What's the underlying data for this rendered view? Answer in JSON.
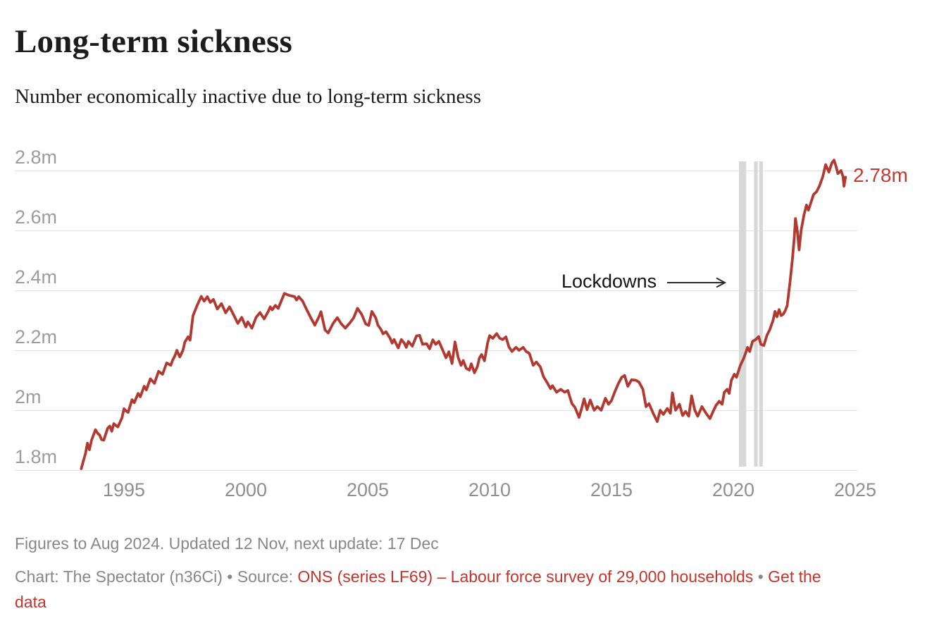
{
  "header": {
    "title": "Long-term sickness",
    "subtitle": "Number economically inactive due to long-term sickness"
  },
  "annotations": {
    "lockdowns_label": "Lockdowns",
    "end_value_label": "2.78m"
  },
  "footer": {
    "notes": "Figures to Aug 2024. Updated 12 Nov, next update: 17 Dec",
    "attribution": {
      "prefix": "Chart: The Spectator (n36Ci)",
      "separator1": " • ",
      "source_label": "Source: ",
      "source_link": "ONS (series LF69) – Labour force survey of 29,000 households",
      "separator2": " • ",
      "get_data_link": "Get the data"
    }
  },
  "colors": {
    "line_red": "#b13930",
    "label_red": "#c23a30",
    "link_red": "#c3342b",
    "grid_gray": "#e2e2e2",
    "band_gray": "#d8d8d8",
    "y_tick_gray": "#9c9c9c",
    "x_tick_gray": "#8f8f8f",
    "annotation_black": "#2b2b2b"
  },
  "chart_data": {
    "type": "line",
    "title": "Long-term sickness",
    "subtitle": "Number economically inactive due to long-term sickness",
    "unit": "millions of people",
    "grid": "horizontal",
    "legend": "none",
    "x_ticks": [
      1995,
      2000,
      2005,
      2010,
      2015,
      2020,
      2025
    ],
    "x_tick_labels": [
      "1995",
      "2000",
      "2005",
      "2010",
      "2015",
      "2020",
      "2025"
    ],
    "y_ticks": [
      1.8,
      2.0,
      2.2,
      2.4,
      2.6,
      2.8
    ],
    "y_tick_labels": [
      "1.8m",
      "2m",
      "2.2m",
      "2.4m",
      "2.6m",
      "2.8m"
    ],
    "x_range": [
      1990.5,
      2025.1
    ],
    "y_range": [
      1.8,
      2.85
    ],
    "lockdown_bands_years": [
      [
        2020.23,
        2020.53
      ],
      [
        2020.85,
        2021.0
      ],
      [
        2021.06,
        2021.21
      ]
    ],
    "lockdowns_annotation": {
      "text": "Lockdowns",
      "arrow_from_year": 2017.3,
      "arrow_to_year": 2019.7,
      "at_value": 2.425
    },
    "end_label": {
      "text": "2.78m",
      "year": 2024.6,
      "value": 2.78
    },
    "series": [
      {
        "name": "Economically inactive due to long-term sickness",
        "color": "#b13930",
        "points": [
          [
            1993.25,
            1.805
          ],
          [
            1993.33,
            1.83
          ],
          [
            1993.42,
            1.855
          ],
          [
            1993.5,
            1.89
          ],
          [
            1993.58,
            1.868
          ],
          [
            1993.67,
            1.9
          ],
          [
            1993.83,
            1.935
          ],
          [
            1993.92,
            1.923
          ],
          [
            1994.0,
            1.917
          ],
          [
            1994.08,
            1.902
          ],
          [
            1994.17,
            1.9
          ],
          [
            1994.33,
            1.94
          ],
          [
            1994.42,
            1.947
          ],
          [
            1994.5,
            1.93
          ],
          [
            1994.58,
            1.955
          ],
          [
            1994.75,
            1.944
          ],
          [
            1994.92,
            1.975
          ],
          [
            1995.0,
            2.005
          ],
          [
            1995.08,
            1.998
          ],
          [
            1995.17,
            1.993
          ],
          [
            1995.33,
            2.035
          ],
          [
            1995.42,
            2.025
          ],
          [
            1995.58,
            2.056
          ],
          [
            1995.67,
            2.045
          ],
          [
            1995.83,
            2.08
          ],
          [
            1995.92,
            2.068
          ],
          [
            1996.08,
            2.105
          ],
          [
            1996.25,
            2.09
          ],
          [
            1996.42,
            2.13
          ],
          [
            1996.58,
            2.12
          ],
          [
            1996.75,
            2.158
          ],
          [
            1996.92,
            2.15
          ],
          [
            1997.0,
            2.168
          ],
          [
            1997.08,
            2.18
          ],
          [
            1997.17,
            2.2
          ],
          [
            1997.29,
            2.178
          ],
          [
            1997.42,
            2.2
          ],
          [
            1997.5,
            2.228
          ],
          [
            1997.63,
            2.245
          ],
          [
            1997.71,
            2.234
          ],
          [
            1997.83,
            2.315
          ],
          [
            1998.0,
            2.35
          ],
          [
            1998.17,
            2.38
          ],
          [
            1998.29,
            2.364
          ],
          [
            1998.42,
            2.379
          ],
          [
            1998.54,
            2.36
          ],
          [
            1998.67,
            2.37
          ],
          [
            1998.83,
            2.338
          ],
          [
            1999.0,
            2.356
          ],
          [
            1999.17,
            2.325
          ],
          [
            1999.33,
            2.345
          ],
          [
            1999.5,
            2.318
          ],
          [
            1999.67,
            2.29
          ],
          [
            1999.83,
            2.31
          ],
          [
            2000.0,
            2.278
          ],
          [
            2000.08,
            2.295
          ],
          [
            2000.25,
            2.274
          ],
          [
            2000.42,
            2.31
          ],
          [
            2000.58,
            2.326
          ],
          [
            2000.75,
            2.305
          ],
          [
            2000.92,
            2.33
          ],
          [
            2001.0,
            2.345
          ],
          [
            2001.08,
            2.335
          ],
          [
            2001.21,
            2.35
          ],
          [
            2001.33,
            2.34
          ],
          [
            2001.5,
            2.374
          ],
          [
            2001.58,
            2.39
          ],
          [
            2001.75,
            2.384
          ],
          [
            2002.0,
            2.379
          ],
          [
            2002.08,
            2.368
          ],
          [
            2002.17,
            2.379
          ],
          [
            2002.33,
            2.364
          ],
          [
            2002.5,
            2.335
          ],
          [
            2002.67,
            2.308
          ],
          [
            2002.83,
            2.284
          ],
          [
            2003.0,
            2.312
          ],
          [
            2003.08,
            2.329
          ],
          [
            2003.25,
            2.268
          ],
          [
            2003.38,
            2.258
          ],
          [
            2003.58,
            2.29
          ],
          [
            2003.75,
            2.309
          ],
          [
            2003.92,
            2.288
          ],
          [
            2004.08,
            2.274
          ],
          [
            2004.25,
            2.29
          ],
          [
            2004.42,
            2.308
          ],
          [
            2004.58,
            2.34
          ],
          [
            2004.75,
            2.32
          ],
          [
            2004.92,
            2.288
          ],
          [
            2005.04,
            2.283
          ],
          [
            2005.17,
            2.33
          ],
          [
            2005.33,
            2.308
          ],
          [
            2005.42,
            2.284
          ],
          [
            2005.54,
            2.27
          ],
          [
            2005.63,
            2.255
          ],
          [
            2005.75,
            2.262
          ],
          [
            2005.92,
            2.24
          ],
          [
            2006.0,
            2.224
          ],
          [
            2006.08,
            2.236
          ],
          [
            2006.25,
            2.208
          ],
          [
            2006.38,
            2.236
          ],
          [
            2006.5,
            2.224
          ],
          [
            2006.58,
            2.21
          ],
          [
            2006.67,
            2.23
          ],
          [
            2006.83,
            2.214
          ],
          [
            2007.0,
            2.248
          ],
          [
            2007.13,
            2.25
          ],
          [
            2007.25,
            2.22
          ],
          [
            2007.42,
            2.222
          ],
          [
            2007.54,
            2.205
          ],
          [
            2007.67,
            2.235
          ],
          [
            2007.79,
            2.22
          ],
          [
            2007.92,
            2.23
          ],
          [
            2008.08,
            2.2
          ],
          [
            2008.21,
            2.175
          ],
          [
            2008.33,
            2.195
          ],
          [
            2008.46,
            2.156
          ],
          [
            2008.58,
            2.228
          ],
          [
            2008.71,
            2.176
          ],
          [
            2008.83,
            2.15
          ],
          [
            2008.92,
            2.166
          ],
          [
            2009.04,
            2.14
          ],
          [
            2009.17,
            2.134
          ],
          [
            2009.25,
            2.155
          ],
          [
            2009.38,
            2.125
          ],
          [
            2009.5,
            2.146
          ],
          [
            2009.58,
            2.174
          ],
          [
            2009.67,
            2.186
          ],
          [
            2009.79,
            2.165
          ],
          [
            2009.92,
            2.225
          ],
          [
            2010.0,
            2.249
          ],
          [
            2010.13,
            2.24
          ],
          [
            2010.29,
            2.256
          ],
          [
            2010.42,
            2.24
          ],
          [
            2010.54,
            2.236
          ],
          [
            2010.67,
            2.245
          ],
          [
            2010.79,
            2.212
          ],
          [
            2010.92,
            2.196
          ],
          [
            2011.08,
            2.21
          ],
          [
            2011.21,
            2.2
          ],
          [
            2011.38,
            2.21
          ],
          [
            2011.5,
            2.196
          ],
          [
            2011.63,
            2.19
          ],
          [
            2011.79,
            2.15
          ],
          [
            2011.92,
            2.161
          ],
          [
            2012.08,
            2.145
          ],
          [
            2012.21,
            2.112
          ],
          [
            2012.38,
            2.09
          ],
          [
            2012.5,
            2.072
          ],
          [
            2012.58,
            2.082
          ],
          [
            2012.75,
            2.06
          ],
          [
            2012.92,
            2.07
          ],
          [
            2013.08,
            2.06
          ],
          [
            2013.21,
            2.066
          ],
          [
            2013.38,
            2.022
          ],
          [
            2013.5,
            2.01
          ],
          [
            2013.67,
            1.976
          ],
          [
            2013.79,
            2.01
          ],
          [
            2013.88,
            2.038
          ],
          [
            2014.0,
            2.002
          ],
          [
            2014.13,
            2.034
          ],
          [
            2014.29,
            2.0
          ],
          [
            2014.42,
            2.012
          ],
          [
            2014.58,
            2.0
          ],
          [
            2014.75,
            2.04
          ],
          [
            2014.88,
            2.02
          ],
          [
            2015.0,
            2.032
          ],
          [
            2015.13,
            2.06
          ],
          [
            2015.29,
            2.09
          ],
          [
            2015.42,
            2.11
          ],
          [
            2015.54,
            2.116
          ],
          [
            2015.67,
            2.08
          ],
          [
            2015.83,
            2.102
          ],
          [
            2016.0,
            2.1
          ],
          [
            2016.13,
            2.094
          ],
          [
            2016.29,
            2.07
          ],
          [
            2016.42,
            2.012
          ],
          [
            2016.54,
            2.022
          ],
          [
            2016.71,
            1.99
          ],
          [
            2016.88,
            1.962
          ],
          [
            2017.0,
            2.0
          ],
          [
            2017.13,
            1.986
          ],
          [
            2017.29,
            2.006
          ],
          [
            2017.42,
            1.99
          ],
          [
            2017.5,
            2.058
          ],
          [
            2017.63,
            2.0
          ],
          [
            2017.79,
            2.02
          ],
          [
            2017.92,
            1.982
          ],
          [
            2018.04,
            1.996
          ],
          [
            2018.17,
            1.98
          ],
          [
            2018.29,
            2.048
          ],
          [
            2018.42,
            2.0
          ],
          [
            2018.54,
            1.98
          ],
          [
            2018.71,
            2.012
          ],
          [
            2018.88,
            1.99
          ],
          [
            2019.04,
            1.972
          ],
          [
            2019.17,
            1.996
          ],
          [
            2019.29,
            2.016
          ],
          [
            2019.42,
            2.03
          ],
          [
            2019.54,
            2.02
          ],
          [
            2019.63,
            2.06
          ],
          [
            2019.75,
            2.07
          ],
          [
            2019.83,
            2.056
          ],
          [
            2019.92,
            2.1
          ],
          [
            2020.04,
            2.12
          ],
          [
            2020.13,
            2.11
          ],
          [
            2020.29,
            2.15
          ],
          [
            2020.42,
            2.172
          ],
          [
            2020.5,
            2.19
          ],
          [
            2020.58,
            2.21
          ],
          [
            2020.67,
            2.196
          ],
          [
            2020.79,
            2.23
          ],
          [
            2020.92,
            2.236
          ],
          [
            2021.04,
            2.246
          ],
          [
            2021.13,
            2.22
          ],
          [
            2021.25,
            2.216
          ],
          [
            2021.38,
            2.25
          ],
          [
            2021.5,
            2.27
          ],
          [
            2021.63,
            2.3
          ],
          [
            2021.71,
            2.33
          ],
          [
            2021.79,
            2.312
          ],
          [
            2021.88,
            2.336
          ],
          [
            2021.96,
            2.316
          ],
          [
            2022.04,
            2.32
          ],
          [
            2022.13,
            2.332
          ],
          [
            2022.21,
            2.35
          ],
          [
            2022.33,
            2.43
          ],
          [
            2022.42,
            2.5
          ],
          [
            2022.5,
            2.575
          ],
          [
            2022.55,
            2.64
          ],
          [
            2022.63,
            2.596
          ],
          [
            2022.7,
            2.535
          ],
          [
            2022.78,
            2.6
          ],
          [
            2022.9,
            2.652
          ],
          [
            2023.0,
            2.685
          ],
          [
            2023.08,
            2.668
          ],
          [
            2023.17,
            2.69
          ],
          [
            2023.29,
            2.72
          ],
          [
            2023.42,
            2.73
          ],
          [
            2023.54,
            2.75
          ],
          [
            2023.67,
            2.78
          ],
          [
            2023.79,
            2.82
          ],
          [
            2023.92,
            2.795
          ],
          [
            2024.04,
            2.825
          ],
          [
            2024.13,
            2.835
          ],
          [
            2024.21,
            2.815
          ],
          [
            2024.29,
            2.79
          ],
          [
            2024.42,
            2.8
          ],
          [
            2024.5,
            2.78
          ],
          [
            2024.54,
            2.748
          ],
          [
            2024.6,
            2.778
          ]
        ]
      }
    ]
  }
}
